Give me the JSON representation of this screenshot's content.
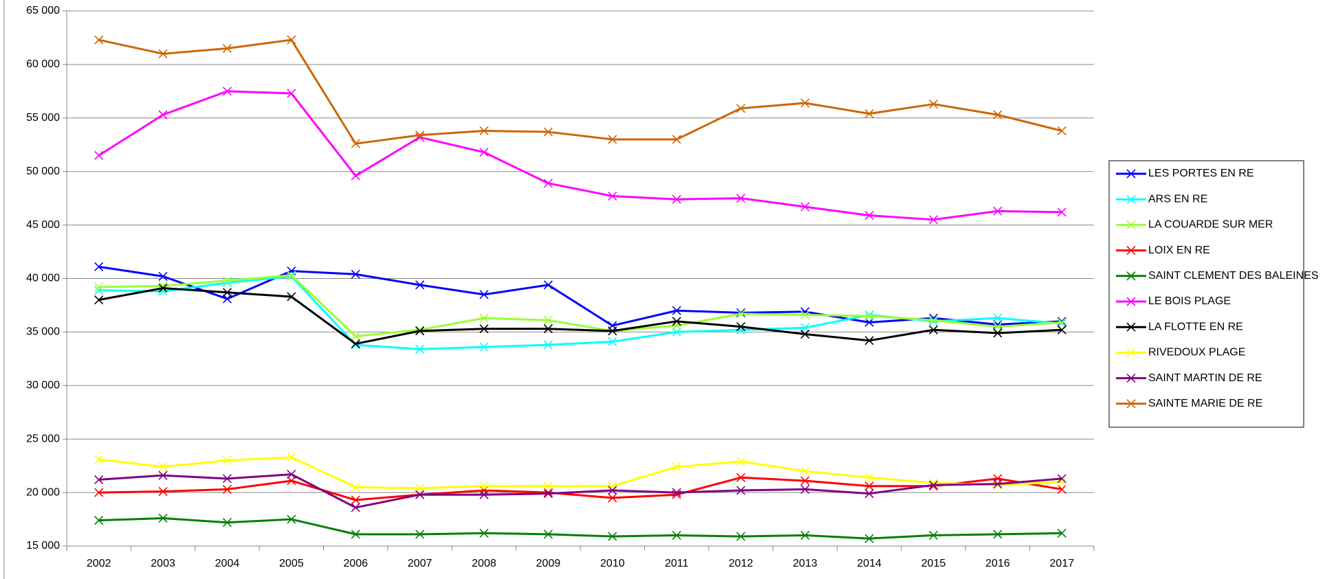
{
  "chart_data": {
    "type": "line",
    "categories": [
      "2002",
      "2003",
      "2004",
      "2005",
      "2006",
      "2007",
      "2008",
      "2009",
      "2010",
      "2011",
      "2012",
      "2013",
      "2014",
      "2015",
      "2016",
      "2017"
    ],
    "ylim": [
      15000,
      65000
    ],
    "yticks": [
      {
        "value": 15000,
        "label": "15 000"
      },
      {
        "value": 20000,
        "label": "20 000"
      },
      {
        "value": 25000,
        "label": "25 000"
      },
      {
        "value": 30000,
        "label": "30 000"
      },
      {
        "value": 35000,
        "label": "35 000"
      },
      {
        "value": 40000,
        "label": "40 000"
      },
      {
        "value": 45000,
        "label": "45 000"
      },
      {
        "value": 50000,
        "label": "50 000"
      },
      {
        "value": 55000,
        "label": "55 000"
      },
      {
        "value": 60000,
        "label": "60 000"
      },
      {
        "value": 65000,
        "label": "65 000"
      }
    ],
    "grid": true,
    "legend": "right",
    "series": [
      {
        "name": "LES PORTES EN RE",
        "color": "#0000ff",
        "values": [
          41100,
          40200,
          38100,
          40700,
          40400,
          39400,
          38500,
          39400,
          35600,
          37000,
          36800,
          36900,
          35900,
          36300,
          35700,
          36000
        ]
      },
      {
        "name": "ARS EN RE",
        "color": "#00ffff",
        "values": [
          38900,
          38800,
          39600,
          40200,
          33800,
          33400,
          33600,
          33800,
          34100,
          35000,
          35200,
          35400,
          36600,
          36000,
          36300,
          35800
        ]
      },
      {
        "name": "LA COUARDE SUR MER",
        "color": "#99ff33",
        "values": [
          39200,
          39300,
          39800,
          40300,
          34600,
          35200,
          36300,
          36100,
          35100,
          35600,
          36700,
          36600,
          36500,
          36100,
          35500,
          35900
        ]
      },
      {
        "name": "LOIX EN RE",
        "color": "#ff0000",
        "values": [
          20000,
          20100,
          20300,
          21100,
          19300,
          19800,
          20200,
          20000,
          19500,
          19800,
          21400,
          21100,
          20600,
          20600,
          21300,
          20300
        ]
      },
      {
        "name": "SAINT CLEMENT DES BALEINES",
        "color": "#008000",
        "values": [
          17400,
          17600,
          17200,
          17500,
          16100,
          16100,
          16200,
          16100,
          15900,
          16000,
          15900,
          16000,
          15700,
          16000,
          16100,
          16200
        ]
      },
      {
        "name": "LE BOIS PLAGE",
        "color": "#ff00ff",
        "values": [
          51500,
          55300,
          57500,
          57300,
          49600,
          53200,
          51800,
          48900,
          47700,
          47400,
          47500,
          46700,
          45900,
          45500,
          46300,
          46200
        ]
      },
      {
        "name": "LA FLOTTE EN RE",
        "color": "#000000",
        "values": [
          38000,
          39100,
          38700,
          38300,
          33900,
          35100,
          35300,
          35300,
          35100,
          36000,
          35500,
          34800,
          34200,
          35200,
          34900,
          35200
        ]
      },
      {
        "name": "RIVEDOUX PLAGE",
        "color": "#ffff00",
        "values": [
          23100,
          22400,
          23000,
          23300,
          20500,
          20400,
          20600,
          20600,
          20600,
          22400,
          22900,
          22000,
          21400,
          20900,
          20700,
          21000
        ]
      },
      {
        "name": "SAINT MARTIN DE RE",
        "color": "#800080",
        "values": [
          21200,
          21600,
          21300,
          21700,
          18600,
          19800,
          19800,
          19900,
          20200,
          20000,
          20200,
          20300,
          19900,
          20700,
          20800,
          21300
        ]
      },
      {
        "name": "SAINTE MARIE DE RE",
        "color": "#cc6600",
        "values": [
          62300,
          61000,
          61500,
          62300,
          52600,
          53400,
          53800,
          53700,
          53000,
          53000,
          55900,
          56400,
          55400,
          56300,
          55300,
          53800
        ]
      }
    ]
  }
}
